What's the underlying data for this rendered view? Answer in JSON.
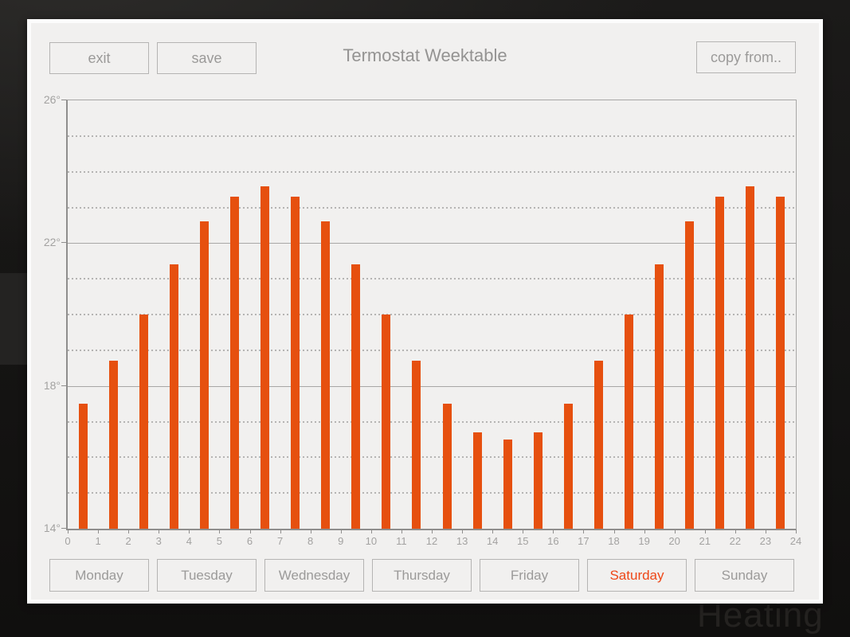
{
  "window": {
    "title": "Termostat Weektable",
    "background_text": "Heating"
  },
  "toolbar": {
    "exit": "exit",
    "save": "save",
    "copy_from": "copy from.."
  },
  "days": [
    {
      "label": "Monday",
      "active": false
    },
    {
      "label": "Tuesday",
      "active": false
    },
    {
      "label": "Wednesday",
      "active": false
    },
    {
      "label": "Thursday",
      "active": false
    },
    {
      "label": "Friday",
      "active": false
    },
    {
      "label": "Saturday",
      "active": true
    },
    {
      "label": "Sunday",
      "active": false
    }
  ],
  "chart_data": {
    "type": "bar",
    "title": "Termostat Weektable",
    "selected_day": "Saturday",
    "x_hours": [
      0,
      1,
      2,
      3,
      4,
      5,
      6,
      7,
      8,
      9,
      10,
      11,
      12,
      13,
      14,
      15,
      16,
      17,
      18,
      19,
      20,
      21,
      22,
      23
    ],
    "values": [
      17.5,
      18.7,
      20.0,
      21.4,
      22.6,
      23.3,
      23.6,
      23.3,
      22.6,
      21.4,
      20.0,
      18.7,
      17.5,
      16.7,
      16.5,
      16.7,
      17.5,
      18.7,
      20.0,
      21.4,
      22.6,
      23.3,
      23.6,
      23.3
    ],
    "xlim": [
      0,
      24
    ],
    "ylim": [
      14,
      26
    ],
    "x_tick_labels": [
      "0",
      "1",
      "2",
      "3",
      "4",
      "5",
      "6",
      "7",
      "8",
      "9",
      "10",
      "11",
      "12",
      "13",
      "14",
      "15",
      "16",
      "17",
      "18",
      "19",
      "20",
      "21",
      "22",
      "23",
      "24"
    ],
    "y_tick_values": [
      26,
      22,
      18,
      14
    ],
    "y_tick_labels": [
      "26°",
      "22°",
      "18°",
      "14°"
    ],
    "grid": {
      "minor_step_deg": 1,
      "minor_style": "dashed",
      "major_step_deg": 4,
      "major_style": "solid"
    },
    "bar_color": "#e6500f"
  },
  "colors": {
    "bar": "#e6500f",
    "active_day_text": "#ee4717",
    "panel_bg": "#f1f0ef",
    "panel_frame": "#fcfcfc",
    "outer_bg": "#121110",
    "button_border": "#b5b4b3",
    "button_text": "#9b9a99",
    "title_text": "#949392",
    "axis_line": "#8f8e8d",
    "grid_major": "#a8a7a6",
    "grid_minor": "#b5b4b3",
    "tick_label": "#a3a2a1"
  }
}
